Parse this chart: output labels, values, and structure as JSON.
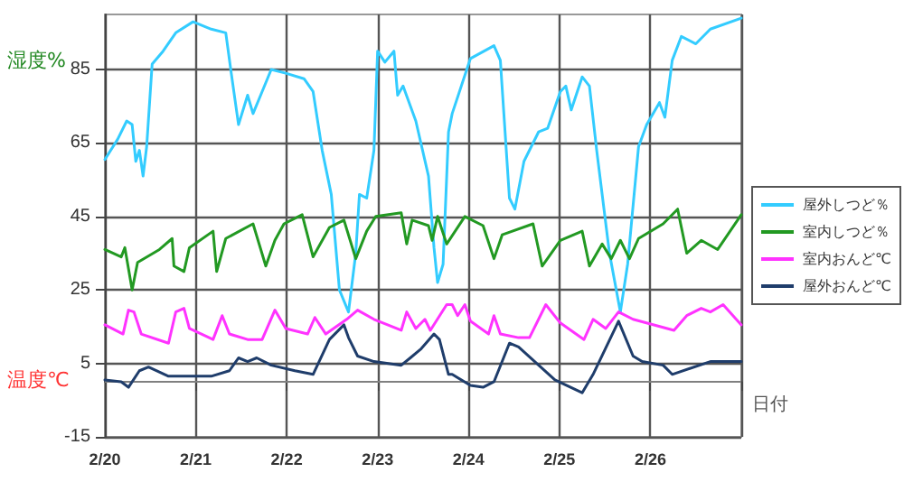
{
  "chart_data": {
    "type": "line",
    "ylabel": "湿度%",
    "xlabel": "日付",
    "annotations": [
      "温度℃"
    ],
    "xlim": [
      "--02-20",
      "--02-27"
    ],
    "xticks": [
      {
        "value": "--02-20",
        "label": "2/20"
      },
      {
        "value": "--02-21",
        "label": "2/21"
      },
      {
        "value": "--02-22",
        "label": "2/22"
      },
      {
        "value": "--02-23",
        "label": "2/23"
      },
      {
        "value": "--02-24",
        "label": "2/24"
      },
      {
        "value": "--02-25",
        "label": "2/25"
      },
      {
        "value": "--02-26",
        "label": "2/26"
      },
      {
        "value": "--02-27",
        "label": null
      }
    ],
    "ylim": [
      -15,
      100
    ],
    "yticks": [
      -15,
      5,
      25,
      45,
      65,
      85
    ],
    "grid": true,
    "legend": "right",
    "marker": "none",
    "line_style": "solid",
    "ref_lines": [
      {
        "axis": "y",
        "value": 0,
        "label": null,
        "color": "#808080"
      }
    ],
    "series": [
      {
        "name": "屋外しつど％",
        "color": "#33ccff",
        "x": [
          "--02-20T00:00",
          "--02-20T03:22",
          "--02-20T05:46",
          "--02-20T07:12",
          "--02-20T08:10",
          "--02-20T09:07",
          "--02-20T10:05",
          "--02-20T11:02",
          "--02-20T12:29",
          "--02-20T15:22",
          "--02-20T18:43",
          "--02-20T23:17",
          "--02-21T04:05",
          "--02-21T07:55",
          "--02-21T09:22",
          "--02-21T11:17",
          "--02-21T13:41",
          "--02-21T15:07",
          "--02-21T17:31",
          "--02-21T19:55",
          "--02-21T23:46",
          "--02-22T04:34",
          "--02-22T06:58",
          "--02-22T09:22",
          "--02-22T11:46",
          "--02-22T13:55",
          "--02-22T16:19",
          "--02-22T18:14",
          "--02-22T19:12",
          "--02-22T21:07",
          "--02-22T23:02",
          "--02-23T00:00",
          "--02-23T01:55",
          "--02-23T04:19",
          "--02-23T05:17",
          "--02-23T06:43",
          "--02-23T10:05",
          "--02-23T13:26",
          "--02-23T14:53",
          "--02-23T15:50",
          "--02-23T17:17",
          "--02-23T18:43",
          "--02-23T19:41",
          "--02-24T00:30",
          "--02-24T06:43",
          "--02-24T08:24",
          "--02-24T10:48",
          "--02-24T12:14",
          "--02-24T14:38",
          "--02-24T18:29",
          "--02-24T20:53",
          "--02-25T00:14",
          "--02-25T01:41",
          "--02-25T03:07",
          "--02-25T06:00",
          "--02-25T07:55",
          "--02-25T09:50",
          "--02-25T13:12",
          "--02-25T16:05",
          "--02-25T18:00",
          "--02-25T20:53",
          "--02-25T23:02",
          "--02-26T02:24",
          "--02-26T03:50",
          "--02-26T05:46",
          "--02-26T08:10",
          "--02-26T12:00",
          "--02-26T15:50",
          "--02-27T00:00"
        ],
        "values": [
          60.5,
          66,
          71,
          70,
          60,
          63,
          56,
          64,
          86.5,
          90,
          95,
          98,
          96,
          95,
          84,
          70,
          78,
          73,
          79,
          85,
          84,
          82.5,
          79,
          63,
          51,
          25,
          19,
          35,
          51,
          50,
          63,
          90,
          87,
          90,
          78,
          80.5,
          71,
          56,
          36.5,
          27,
          32,
          68,
          73,
          88,
          91.5,
          87.5,
          50,
          47,
          60,
          68,
          69,
          79,
          80.5,
          74,
          83,
          80.5,
          63,
          35,
          19,
          32,
          64,
          70,
          76,
          72,
          87.5,
          94,
          92,
          96,
          99
        ]
      },
      {
        "name": "室内しつど％",
        "color": "#229922",
        "x": [
          "--02-20T00:00",
          "--02-20T04:19",
          "--02-20T05:17",
          "--02-20T07:12",
          "--02-20T08:38",
          "--02-20T14:24",
          "--02-20T17:46",
          "--02-20T18:14",
          "--02-20T20:53",
          "--02-20T22:19",
          "--02-21T04:34",
          "--02-21T05:31",
          "--02-21T07:55",
          "--02-21T15:07",
          "--02-21T18:29",
          "--02-21T20:53",
          "--02-21T23:17",
          "--02-22T04:05",
          "--02-22T06:58",
          "--02-22T11:17",
          "--02-22T15:07",
          "--02-22T18:14",
          "--02-22T21:07",
          "--02-22T23:31",
          "--02-23T06:14",
          "--02-23T07:41",
          "--02-23T09:07",
          "--02-23T13:26",
          "--02-23T14:24",
          "--02-23T15:50",
          "--02-23T18:14",
          "--02-23T23:02",
          "--02-24T03:50",
          "--02-24T06:43",
          "--02-24T08:53",
          "--02-24T17:02",
          "--02-24T19:26",
          "--02-25T00:14",
          "--02-25T06:00",
          "--02-25T07:55",
          "--02-25T11:17",
          "--02-25T13:41",
          "--02-25T16:05",
          "--02-25T18:29",
          "--02-25T20:53",
          "--02-26T03:22",
          "--02-26T07:12",
          "--02-26T09:36",
          "--02-26T13:26",
          "--02-26T17:46",
          "--02-27T00:00"
        ],
        "values": [
          36,
          34,
          36.5,
          25,
          32.5,
          36,
          39,
          31.5,
          30,
          36.5,
          41,
          30,
          39,
          43,
          31.5,
          38.5,
          43,
          45.5,
          34,
          42,
          44,
          33.5,
          41,
          45,
          46,
          37.5,
          44,
          42.5,
          38.5,
          45,
          37.5,
          45,
          42.5,
          33.5,
          40,
          43,
          31.5,
          38.5,
          41,
          31.5,
          37.5,
          33.5,
          38.5,
          33.5,
          39,
          43,
          47,
          35,
          38.5,
          36,
          45.5
        ]
      },
      {
        "name": "室内おんど℃",
        "color": "#ff33ff",
        "x": [
          "--02-20T00:00",
          "--02-20T04:48",
          "--02-20T06:14",
          "--02-20T07:41",
          "--02-20T09:36",
          "--02-20T16:48",
          "--02-20T18:43",
          "--02-20T20:53",
          "--02-20T22:19",
          "--02-21T04:34",
          "--02-21T06:58",
          "--02-21T08:53",
          "--02-21T13:41",
          "--02-21T17:31",
          "--02-21T20:53",
          "--02-21T23:46",
          "--02-22T05:31",
          "--02-22T07:26",
          "--02-22T10:19",
          "--02-22T15:50",
          "--02-22T18:43",
          "--02-22T23:02",
          "--02-23T06:14",
          "--02-23T07:41",
          "--02-23T10:05",
          "--02-23T12:29",
          "--02-23T13:55",
          "--02-23T18:14",
          "--02-23T19:41",
          "--02-23T21:07",
          "--02-23T23:02",
          "--02-24T00:30",
          "--02-24T05:17",
          "--02-24T06:43",
          "--02-24T08:24",
          "--02-24T13:12",
          "--02-24T16:05",
          "--02-24T20:24",
          "--02-25T00:14",
          "--02-25T06:29",
          "--02-25T08:53",
          "--02-25T12:14",
          "--02-25T15:36",
          "--02-25T19:26",
          "--02-26T06:14",
          "--02-26T09:36",
          "--02-26T13:26",
          "--02-26T15:50",
          "--02-26T19:12",
          "--02-27T00:00"
        ],
        "values": [
          15.5,
          13,
          19.5,
          19,
          13,
          10.5,
          19,
          20,
          14.5,
          11.5,
          18,
          13,
          11.5,
          11.5,
          19.5,
          14.5,
          13,
          17.5,
          13,
          17,
          19.5,
          17,
          14,
          19,
          14.5,
          17,
          14,
          21,
          21,
          18,
          21,
          16.5,
          13,
          18,
          13,
          12,
          12,
          21,
          16,
          11.5,
          17,
          14.5,
          19,
          17,
          14,
          18,
          20,
          19,
          21,
          15.5
        ]
      },
      {
        "name": "屋外おんど℃",
        "color": "#1f3d6b",
        "x": [
          "--02-20T00:00",
          "--02-20T04:19",
          "--02-20T06:14",
          "--02-20T09:07",
          "--02-20T11:31",
          "--02-20T16:48",
          "--02-21T04:05",
          "--02-21T08:53",
          "--02-21T11:17",
          "--02-21T13:41",
          "--02-21T16:05",
          "--02-21T19:55",
          "--02-22T02:10",
          "--02-22T06:58",
          "--02-22T11:17",
          "--02-22T15:07",
          "--02-22T16:19",
          "--02-22T18:43",
          "--02-22T23:02",
          "--02-23T06:14",
          "--02-23T08:38",
          "--02-23T11:31",
          "--02-23T14:53",
          "--02-23T16:19",
          "--02-23T18:43",
          "--02-23T19:41",
          "--02-24T00:30",
          "--02-24T03:50",
          "--02-24T06:43",
          "--02-24T10:48",
          "--02-24T13:12",
          "--02-24T22:48",
          "--02-25T06:00",
          "--02-25T08:53",
          "--02-25T15:36",
          "--02-25T19:26",
          "--02-25T21:50",
          "--02-26T03:22",
          "--02-26T05:46",
          "--02-26T15:50",
          "--02-27T00:00"
        ],
        "values": [
          0.5,
          0,
          -1.5,
          3,
          4,
          1.5,
          1.5,
          3,
          6.5,
          5.5,
          6.5,
          4.5,
          3,
          2,
          11.5,
          15.5,
          12,
          7,
          5.5,
          4.5,
          6.5,
          9,
          13,
          11.5,
          2,
          2,
          -1,
          -1.5,
          0,
          10.5,
          9.5,
          0.5,
          -3,
          2,
          16.5,
          7,
          5.5,
          4.5,
          2,
          5.5,
          5.5
        ]
      }
    ]
  }
}
